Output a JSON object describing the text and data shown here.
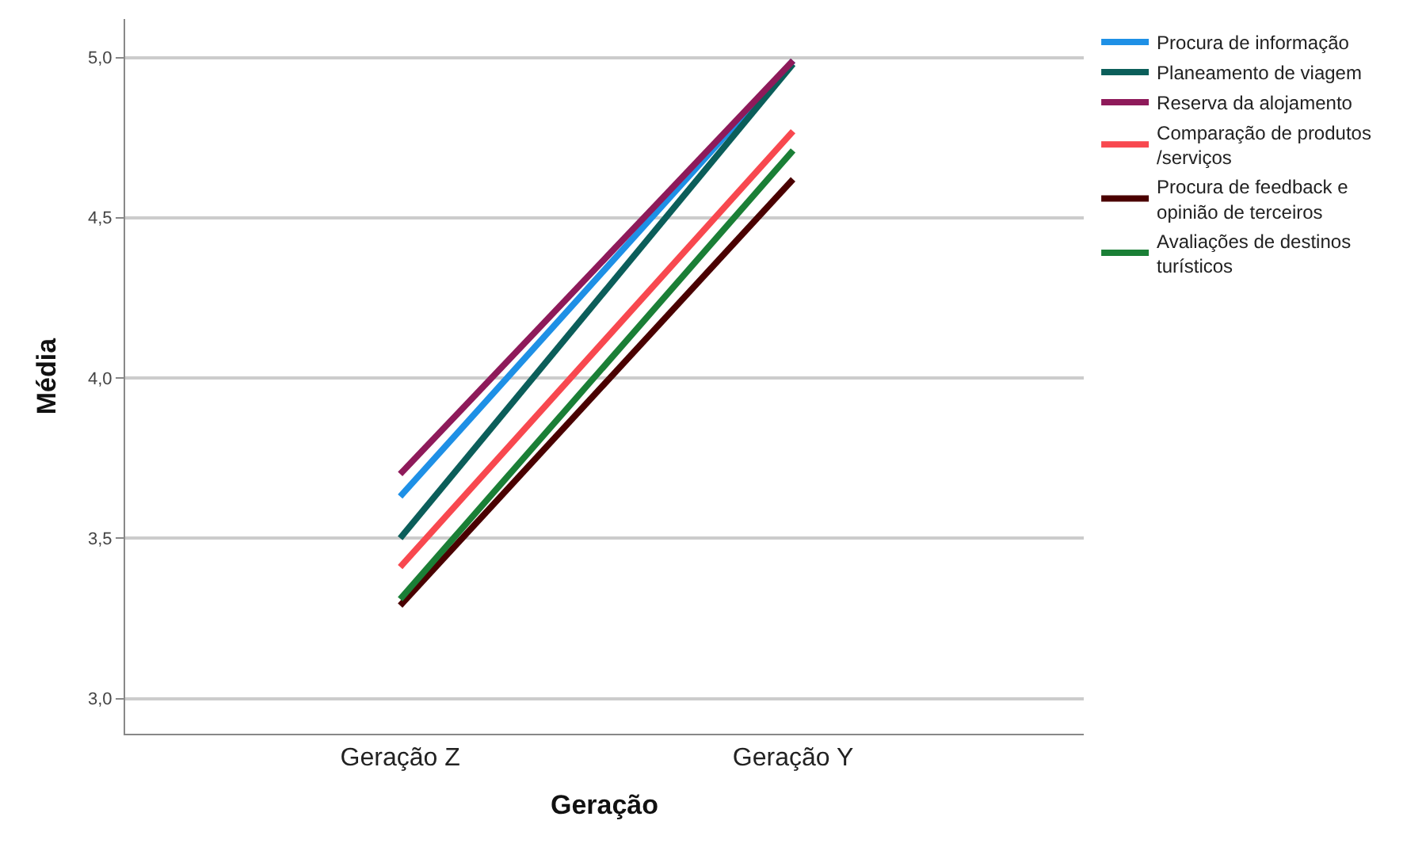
{
  "chart_data": {
    "type": "line",
    "xlabel": "Geração",
    "ylabel": "Média",
    "categories": [
      "Geração Z",
      "Geração Y"
    ],
    "series": [
      {
        "name": "Procura de informação",
        "color": "#1e90e6",
        "values": [
          3.63,
          4.99
        ]
      },
      {
        "name": "Planeamento de viagem",
        "color": "#0b5e5a",
        "values": [
          3.5,
          4.98
        ]
      },
      {
        "name": "Reserva da alojamento",
        "color": "#8e1a5a",
        "values": [
          3.7,
          4.99
        ]
      },
      {
        "name": "Comparação de produtos /serviços",
        "color": "#f8484f",
        "values": [
          3.41,
          4.77
        ]
      },
      {
        "name": "Procura de feedback e opinião de terceiros",
        "color": "#4a0000",
        "values": [
          3.29,
          4.62
        ]
      },
      {
        "name": "Avaliações de destinos turísticos",
        "color": "#1a7f36",
        "values": [
          3.31,
          4.71
        ]
      }
    ],
    "ylim": [
      2.89,
      5.12
    ],
    "yticks": [
      {
        "value": 3,
        "label": "3,0"
      },
      {
        "value": 3.5,
        "label": "3,5"
      },
      {
        "value": 4,
        "label": "4,0"
      },
      {
        "value": 4.5,
        "label": "4,5"
      },
      {
        "value": 5,
        "label": "5,0"
      }
    ],
    "grid": "y",
    "legend": "top right",
    "marker": "none",
    "line_style": "solid"
  }
}
